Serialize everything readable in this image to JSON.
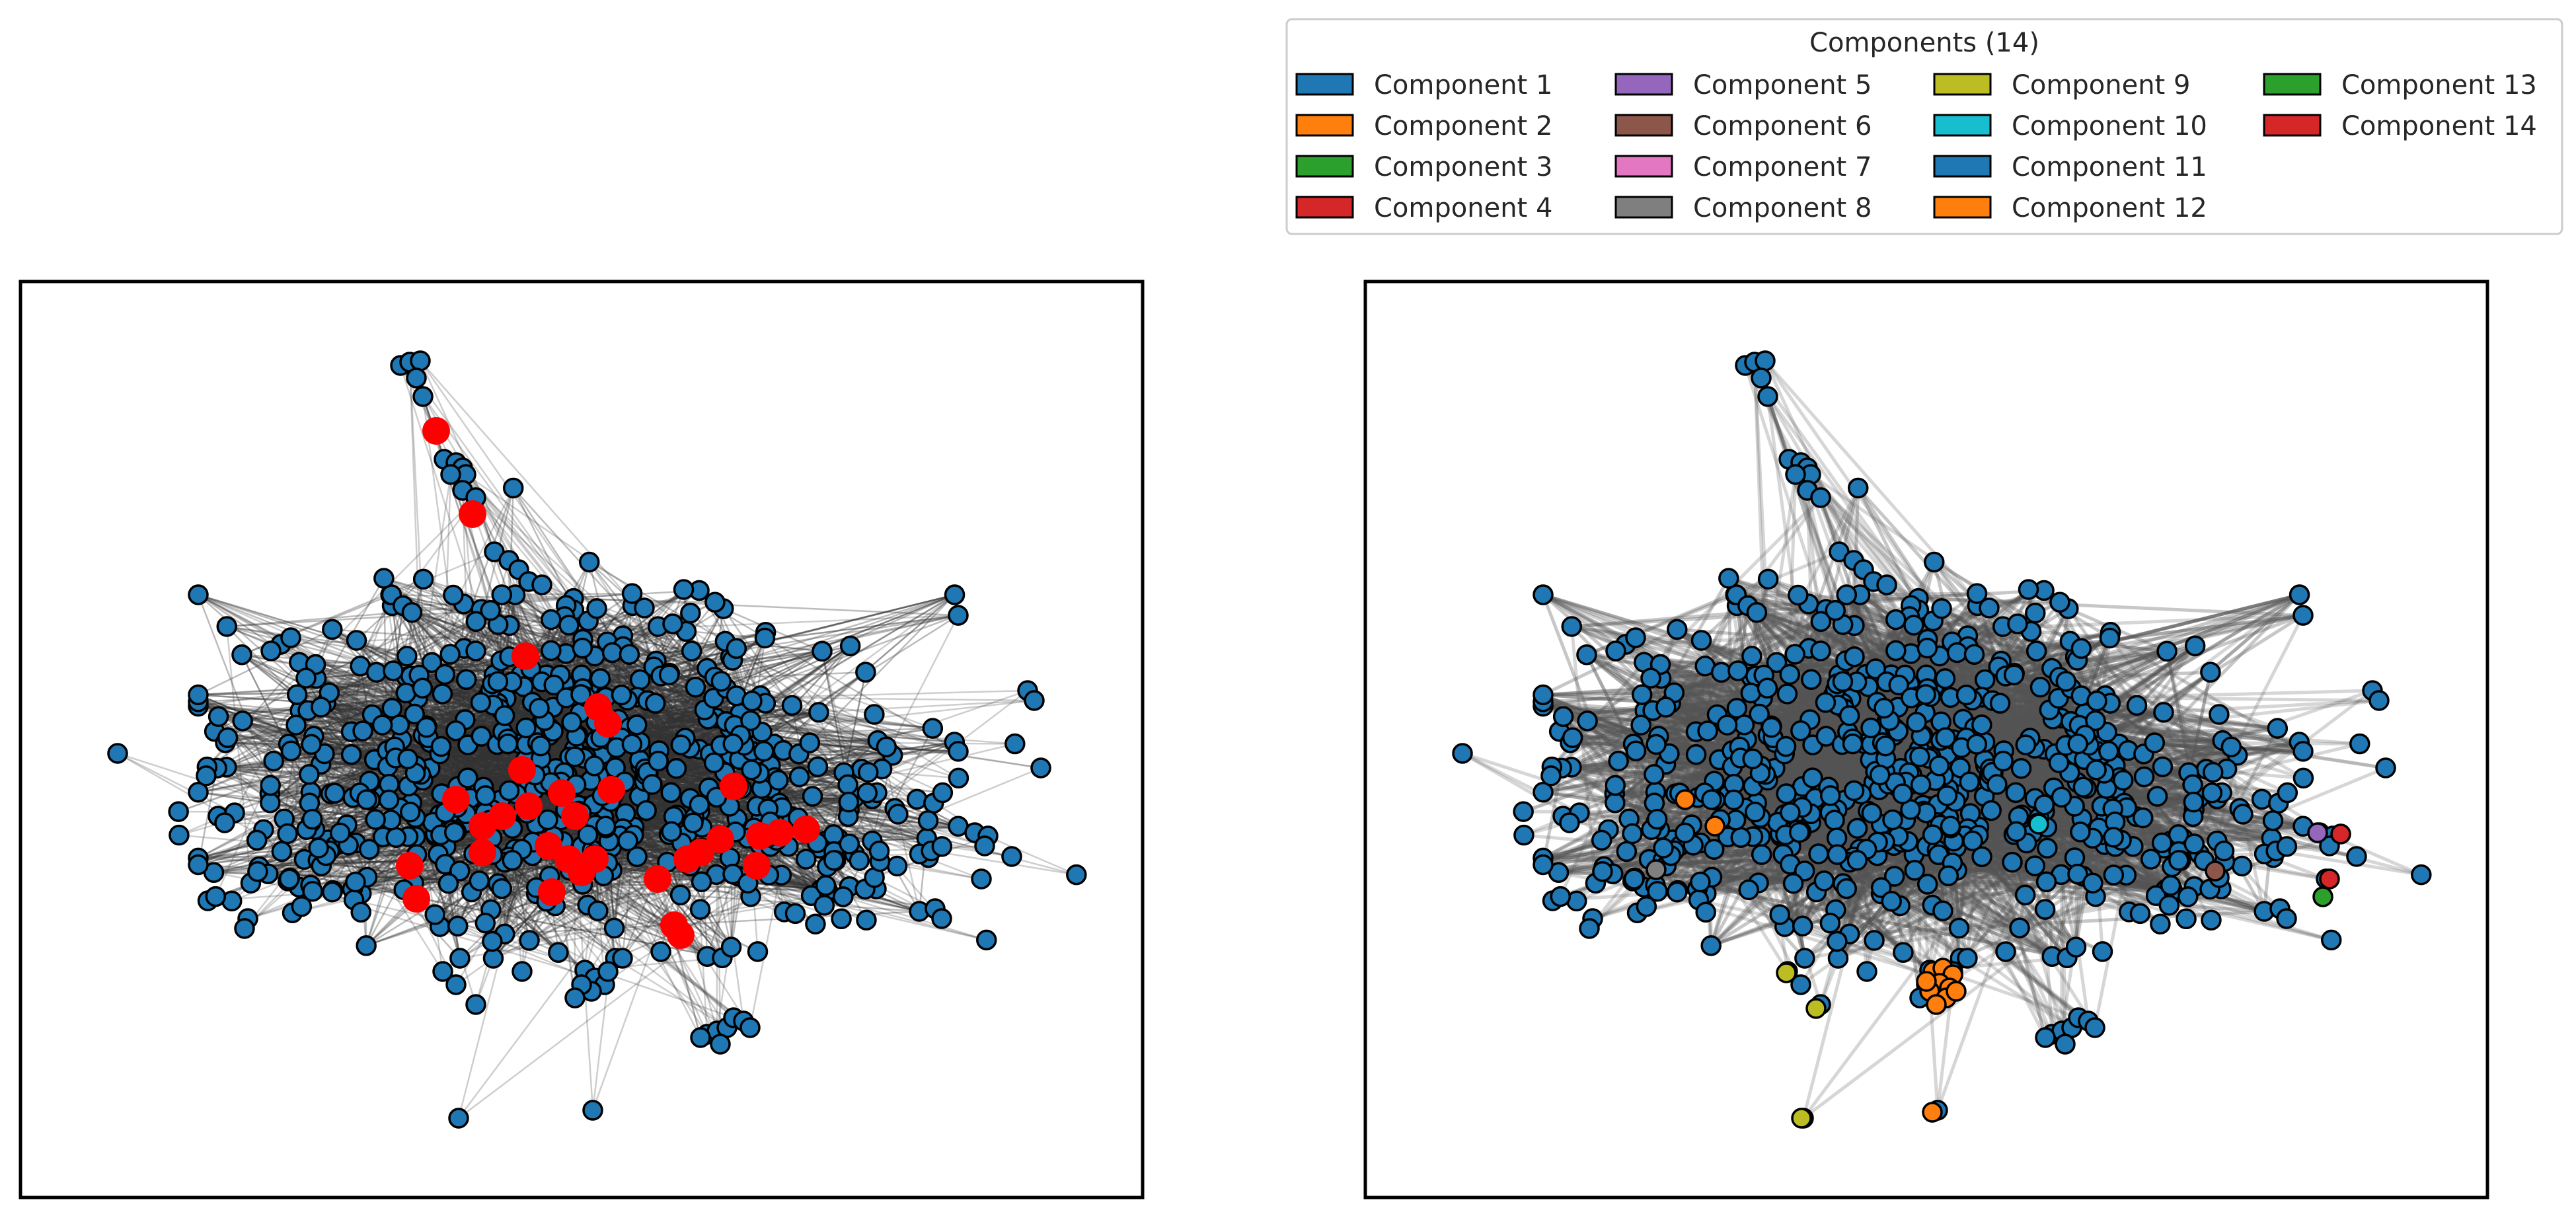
{
  "legend": {
    "title": "Components (14)",
    "items": [
      {
        "label": "Component 1",
        "color": "#1f77b4"
      },
      {
        "label": "Component 2",
        "color": "#ff7f0e"
      },
      {
        "label": "Component 3",
        "color": "#2ca02c"
      },
      {
        "label": "Component 4",
        "color": "#d62728"
      },
      {
        "label": "Component 5",
        "color": "#9467bd"
      },
      {
        "label": "Component 6",
        "color": "#8c564b"
      },
      {
        "label": "Component 7",
        "color": "#e377c2"
      },
      {
        "label": "Component 8",
        "color": "#7f7f7f"
      },
      {
        "label": "Component 9",
        "color": "#bcbd22"
      },
      {
        "label": "Component 10",
        "color": "#17becf"
      },
      {
        "label": "Component 11",
        "color": "#1f77b4"
      },
      {
        "label": "Component 12",
        "color": "#ff7f0e"
      },
      {
        "label": "Component 13",
        "color": "#2ca02c"
      },
      {
        "label": "Component 14",
        "color": "#d62728"
      }
    ]
  },
  "panels": [
    {
      "id": "left-network",
      "highlight_color": "#ff0000",
      "node_color": "#1f77b4"
    },
    {
      "id": "right-network-components",
      "node_color": "#1f77b4"
    }
  ]
}
